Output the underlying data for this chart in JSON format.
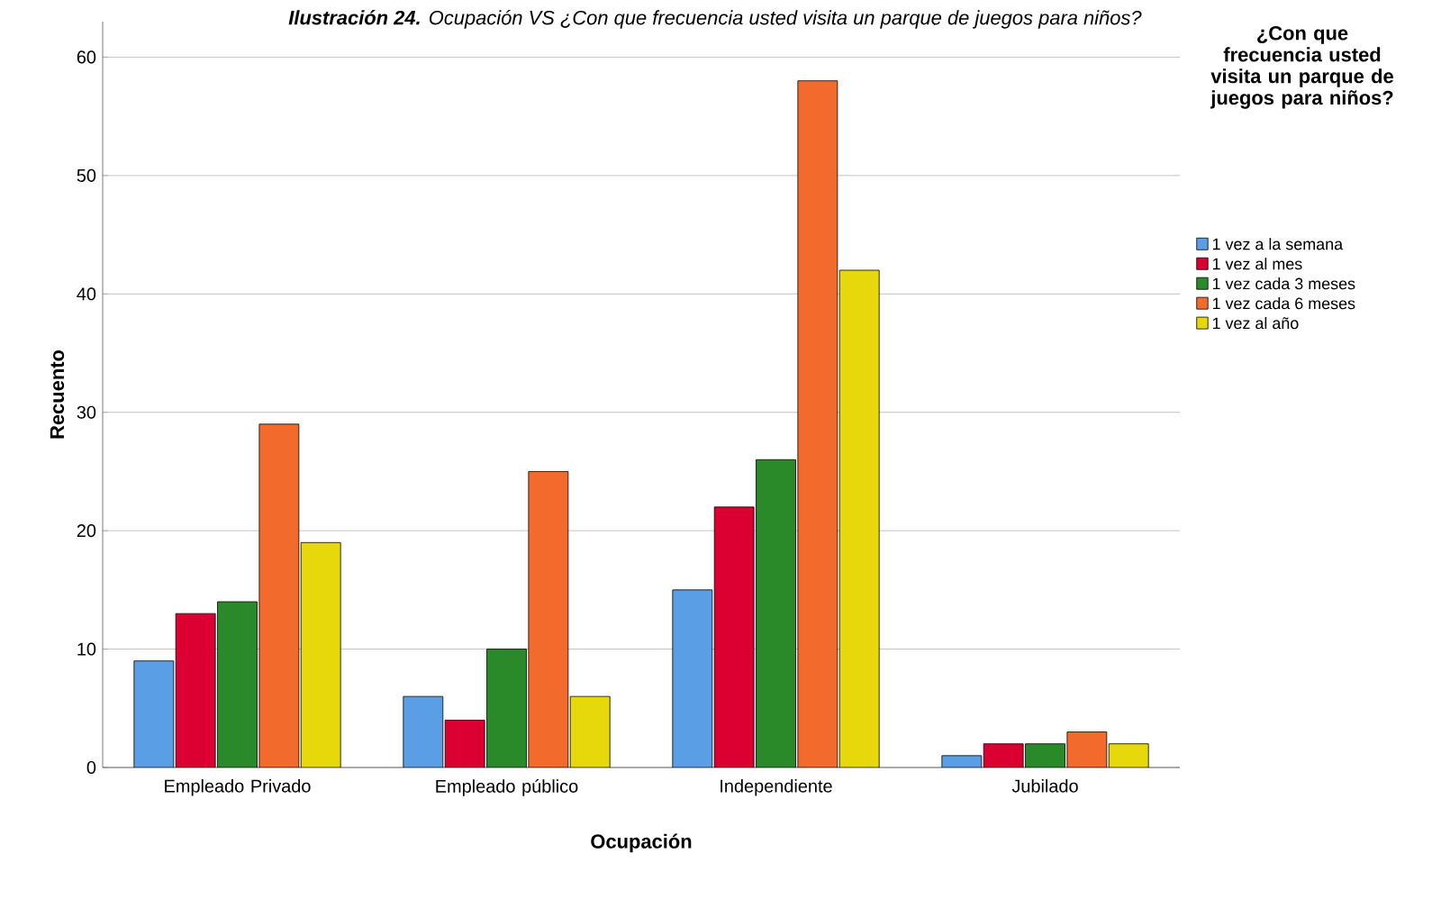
{
  "chart_data": {
    "type": "bar",
    "title": "**Ilustración 24.** Ocupación VS ¿Con que frecuencia usted visita un parque de juegos para niños?",
    "xlabel": "Ocupación",
    "ylabel": "Recuento",
    "legend_title": "¿Con que frecuencia usted visita un parque de juegos para niños?",
    "categories": [
      "Empleado Privado",
      "Empleado público",
      "Independiente",
      "Jubilado"
    ],
    "series": [
      {
        "name": "1 vez a la semana",
        "color": "#5a9ee6",
        "values": [
          9,
          6,
          15,
          1
        ]
      },
      {
        "name": "1 vez al mes",
        "color": "#dc0032",
        "values": [
          13,
          4,
          22,
          2
        ]
      },
      {
        "name": "1 vez cada 3 meses",
        "color": "#2a8a2a",
        "values": [
          14,
          10,
          26,
          2
        ]
      },
      {
        "name": "1 vez cada 6 meses",
        "color": "#f26b2d",
        "values": [
          29,
          25,
          58,
          3
        ]
      },
      {
        "name": "1 vez al año",
        "color": "#e6d80a",
        "values": [
          19,
          6,
          42,
          2
        ]
      }
    ],
    "ylim": [
      0,
      63
    ],
    "yticks": [
      0,
      10,
      20,
      30,
      40,
      50,
      60
    ],
    "grid": "y",
    "legend": "right"
  }
}
